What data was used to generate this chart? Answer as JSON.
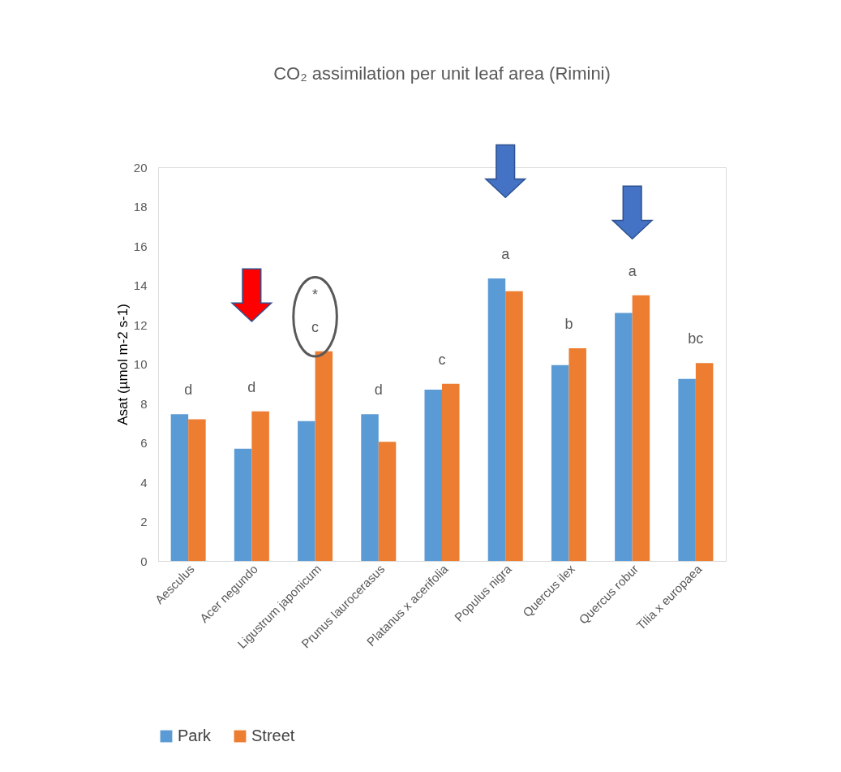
{
  "chart_data": {
    "type": "bar",
    "title": "CO₂ assimilation per unit leaf area (Rimini)",
    "ylabel": "Asat (µmol m-2 s-1)",
    "categories": [
      "Aesculus",
      "Acer negundo",
      "Ligustrum japonicum",
      "Prunus laurocerasus",
      "Platanus x acerifolia",
      "Populus nigra",
      "Quercus ilex",
      "Quercus robur",
      "Tilia x europaea"
    ],
    "series": [
      {
        "name": "Park",
        "color": "#5b9bd5",
        "values": [
          7.45,
          5.7,
          7.1,
          7.45,
          8.7,
          14.35,
          9.95,
          12.6,
          9.25
        ]
      },
      {
        "name": "Street",
        "color": "#ed7d31",
        "values": [
          7.2,
          7.6,
          10.65,
          6.05,
          9.0,
          13.7,
          10.8,
          13.5,
          10.05
        ]
      }
    ],
    "ylim": [
      0,
      20
    ],
    "yticks": [
      0,
      2,
      4,
      6,
      8,
      10,
      12,
      14,
      16,
      18,
      20
    ],
    "grid": false,
    "legend": "bottom",
    "annotations": [
      "d",
      "d",
      "*\nc",
      "d",
      "c",
      "a",
      "b",
      "a",
      "bc"
    ]
  }
}
